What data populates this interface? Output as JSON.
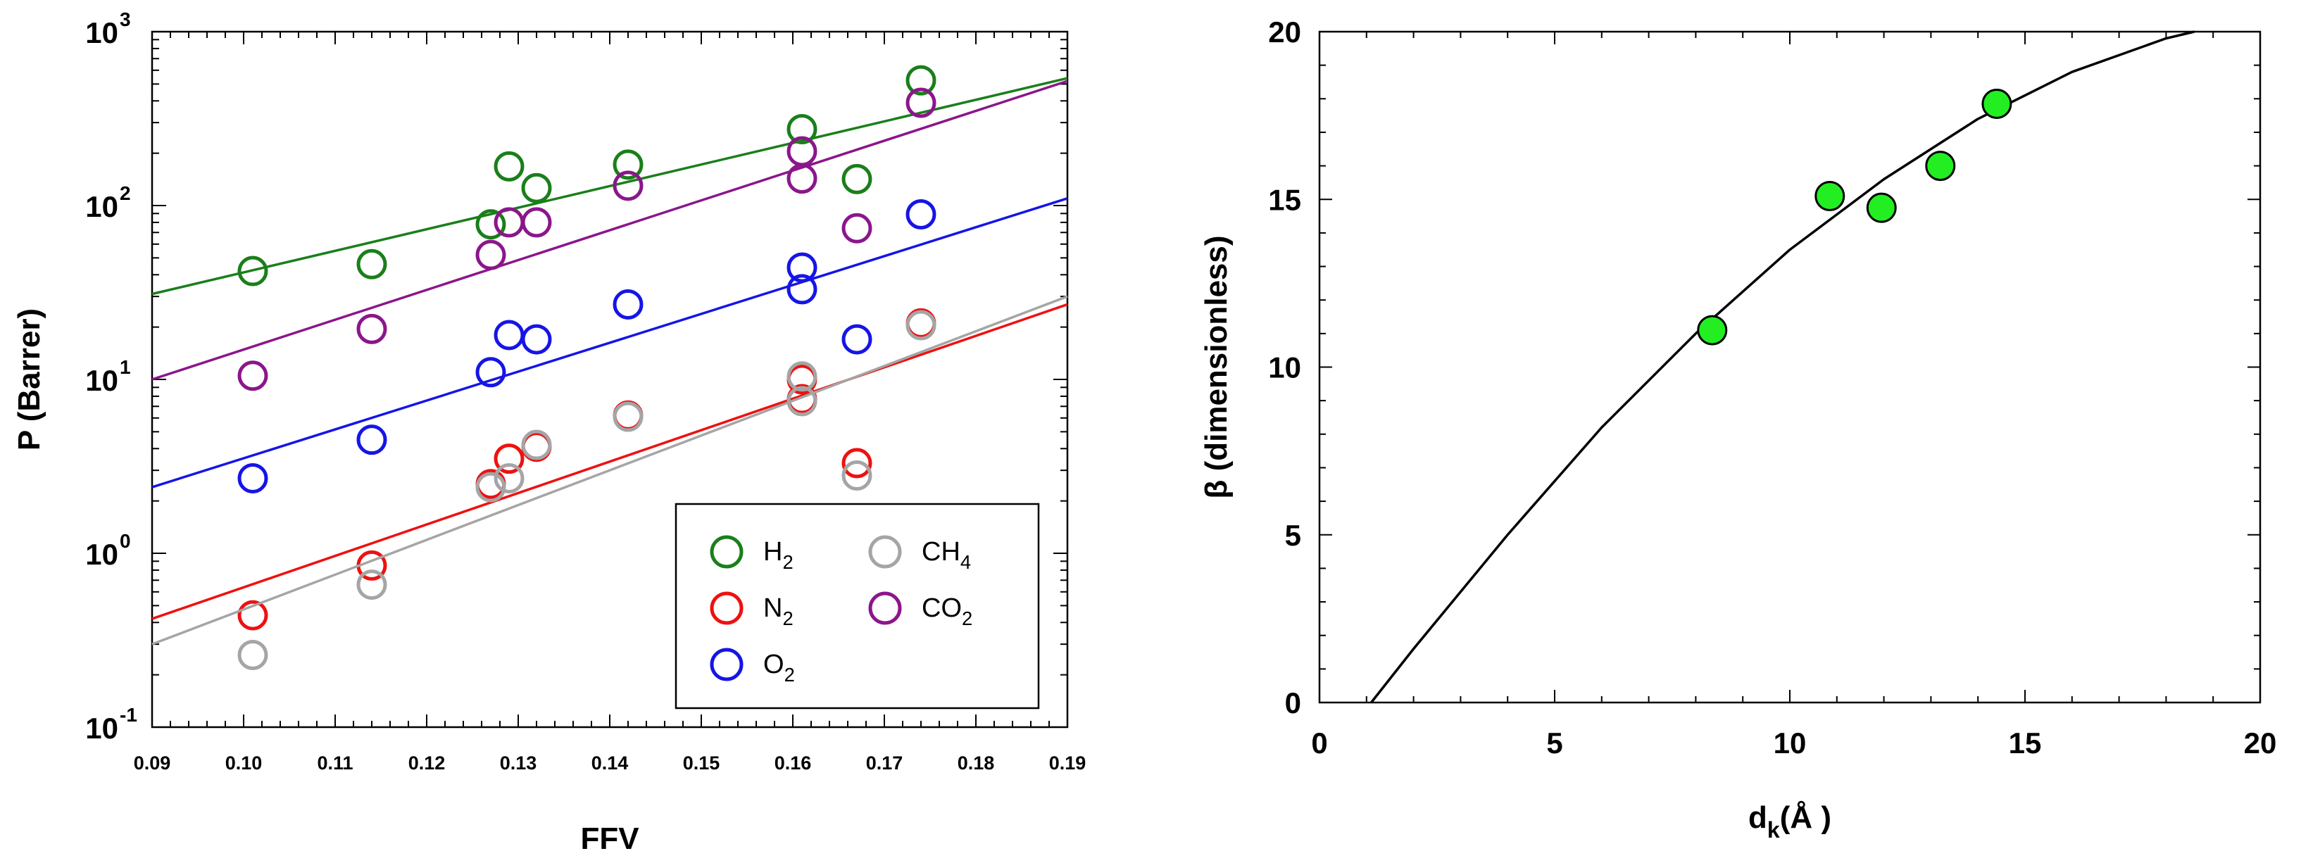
{
  "chart_data": [
    {
      "type": "scatter",
      "yscale": "log",
      "xlabel": "FFV",
      "ylabel": "P (Barrer)",
      "xlim": [
        0.09,
        0.19
      ],
      "ylim": [
        0.1,
        1000
      ],
      "x_ticks": [
        "0.09",
        "0.10",
        "0.11",
        "0.12",
        "0.13",
        "0.14",
        "0.15",
        "0.16",
        "0.17",
        "0.18",
        "0.19"
      ],
      "y_ticks": [
        {
          "base": "10",
          "exp": "-1",
          "value": 0.1
        },
        {
          "base": "10",
          "exp": "0",
          "value": 1
        },
        {
          "base": "10",
          "exp": "1",
          "value": 10
        },
        {
          "base": "10",
          "exp": "2",
          "value": 100
        },
        {
          "base": "10",
          "exp": "3",
          "value": 1000
        }
      ],
      "legend_position": "bottom-right",
      "series": [
        {
          "name": "H2",
          "base": "H",
          "sub": "2",
          "color": "#1a7f1a",
          "points": [
            [
              0.101,
              42
            ],
            [
              0.114,
              46
            ],
            [
              0.127,
              78
            ],
            [
              0.129,
              168
            ],
            [
              0.132,
              126
            ],
            [
              0.142,
              172
            ],
            [
              0.161,
              275
            ],
            [
              0.167,
              142
            ],
            [
              0.174,
              525
            ]
          ],
          "fit": [
            [
              0.09,
              31
            ],
            [
              0.19,
              540
            ]
          ]
        },
        {
          "name": "N2",
          "base": "N",
          "sub": "2",
          "color": "#ee1111",
          "points": [
            [
              0.101,
              0.44
            ],
            [
              0.114,
              0.85
            ],
            [
              0.127,
              2.5
            ],
            [
              0.129,
              3.5
            ],
            [
              0.132,
              4.1
            ],
            [
              0.142,
              6.2
            ],
            [
              0.161,
              10.0
            ],
            [
              0.161,
              7.7
            ],
            [
              0.167,
              3.3
            ],
            [
              0.174,
              21
            ]
          ],
          "fit": [
            [
              0.09,
              0.42
            ],
            [
              0.19,
              27
            ]
          ]
        },
        {
          "name": "O2",
          "base": "O",
          "sub": "2",
          "color": "#1515e6",
          "points": [
            [
              0.101,
              2.7
            ],
            [
              0.114,
              4.5
            ],
            [
              0.127,
              11
            ],
            [
              0.129,
              18
            ],
            [
              0.132,
              17
            ],
            [
              0.142,
              27
            ],
            [
              0.161,
              44
            ],
            [
              0.161,
              33
            ],
            [
              0.167,
              17
            ],
            [
              0.174,
              89
            ]
          ],
          "fit": [
            [
              0.09,
              2.4
            ],
            [
              0.19,
              110
            ]
          ]
        },
        {
          "name": "CH4",
          "base": "CH",
          "sub": "4",
          "color": "#a5a5a5",
          "points": [
            [
              0.101,
              0.26
            ],
            [
              0.114,
              0.66
            ],
            [
              0.127,
              2.4
            ],
            [
              0.129,
              2.7
            ],
            [
              0.132,
              4.2
            ],
            [
              0.142,
              6.1
            ],
            [
              0.161,
              10.4
            ],
            [
              0.161,
              7.5
            ],
            [
              0.167,
              2.8
            ],
            [
              0.174,
              20.5
            ]
          ],
          "fit": [
            [
              0.09,
              0.3
            ],
            [
              0.19,
              30
            ]
          ]
        },
        {
          "name": "CO2",
          "base": "CO",
          "sub": "2",
          "color": "#8b168b",
          "points": [
            [
              0.101,
              10.5
            ],
            [
              0.114,
              19.5
            ],
            [
              0.127,
              52
            ],
            [
              0.129,
              80
            ],
            [
              0.132,
              80
            ],
            [
              0.142,
              130
            ],
            [
              0.161,
              205
            ],
            [
              0.161,
              143
            ],
            [
              0.167,
              74
            ],
            [
              0.174,
              390
            ]
          ],
          "fit": [
            [
              0.09,
              10
            ],
            [
              0.19,
              520
            ]
          ]
        }
      ]
    },
    {
      "type": "scatter",
      "xlabel": {
        "base": "d",
        "sub": "k",
        "rest": "(Å )"
      },
      "ylabel": "β (dimensionless)",
      "xlim": [
        0,
        20
      ],
      "ylim": [
        0,
        20
      ],
      "x_ticks": [
        "0",
        "5",
        "10",
        "15",
        "20"
      ],
      "y_ticks": [
        "0",
        "5",
        "10",
        "15",
        "20"
      ],
      "marker_color": "#22ee22",
      "points": [
        [
          8.35,
          11.1
        ],
        [
          10.85,
          15.1
        ],
        [
          11.95,
          14.75
        ],
        [
          13.2,
          16.0
        ],
        [
          14.4,
          17.85
        ]
      ],
      "fit_curve": [
        [
          1.1,
          0.0
        ],
        [
          2,
          1.6
        ],
        [
          4,
          5.0
        ],
        [
          6,
          8.2
        ],
        [
          8,
          11.0
        ],
        [
          10,
          13.5
        ],
        [
          12,
          15.6
        ],
        [
          14,
          17.4
        ],
        [
          16,
          18.8
        ],
        [
          18,
          19.8
        ],
        [
          18.6,
          20.0
        ]
      ]
    }
  ]
}
